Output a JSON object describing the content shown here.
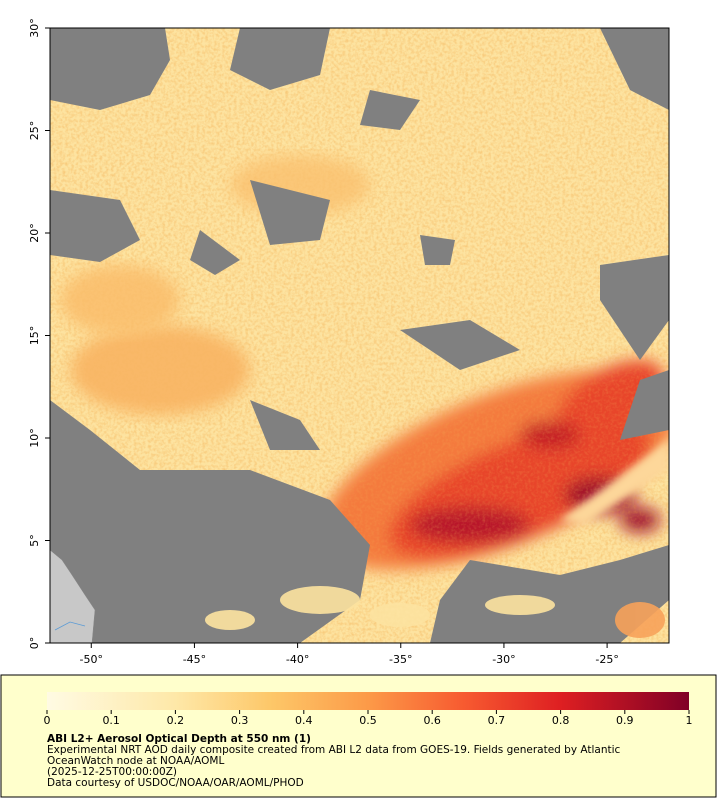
{
  "map": {
    "xlim": [
      -52,
      -22
    ],
    "ylim": [
      0,
      30
    ],
    "xticks": [
      {
        "value": -50,
        "label": "-50°"
      },
      {
        "value": -45,
        "label": "-45°"
      },
      {
        "value": -40,
        "label": "-40°"
      },
      {
        "value": -35,
        "label": "-35°"
      },
      {
        "value": -30,
        "label": "-30°"
      },
      {
        "value": -25,
        "label": "-25°"
      }
    ],
    "yticks": [
      {
        "value": 0,
        "label": "0°"
      },
      {
        "value": 5,
        "label": "5°"
      },
      {
        "value": 10,
        "label": "10°"
      },
      {
        "value": 15,
        "label": "15°"
      },
      {
        "value": 20,
        "label": "20°"
      },
      {
        "value": 25,
        "label": "25°"
      },
      {
        "value": 30,
        "label": "30°"
      }
    ]
  },
  "colorbar": {
    "lim": [
      0,
      1
    ],
    "ticks": [
      0,
      0.1,
      0.2,
      0.3,
      0.4,
      0.5,
      0.6,
      0.7,
      0.8,
      0.9,
      1
    ]
  },
  "legend": {
    "title": "ABI L2+ Aerosol Optical Depth at 550 nm (1)",
    "lines": [
      "Experimental NRT AOD daily composite created from ABI L2 data from GOES-19. Fields generated by Atlantic",
      "OceanWatch node at NOAA/AOML",
      "(2025-12-25T00:00:00Z)",
      "Data courtesy of USDOC/NOAA/OAR/AOML/PHOD"
    ]
  }
}
